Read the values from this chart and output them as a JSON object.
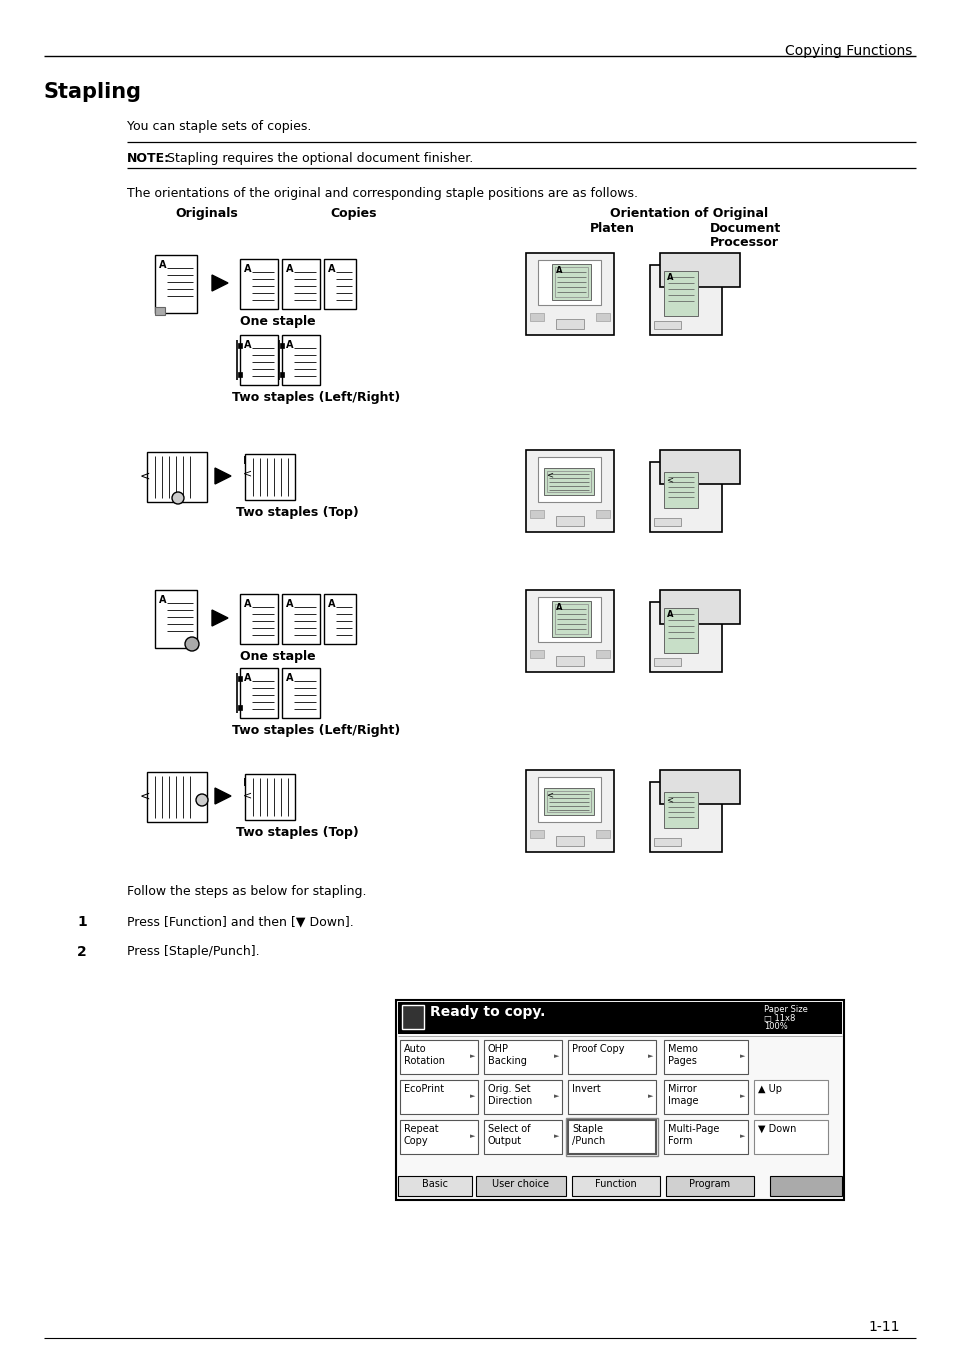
{
  "page_header_text": "Copying Functions",
  "title": "Stapling",
  "body_text_1": "You can staple sets of copies.",
  "note_bold": "NOTE:",
  "note_rest": " Stapling requires the optional document finisher.",
  "body_text_2": "The orientations of the original and corresponding staple positions are as follows.",
  "page_number": "1-11",
  "bg_color": "#ffffff",
  "green_fill": "#c8dfc8",
  "steps_header": "Follow the steps as below for stapling.",
  "step1": "Press [Function] and then [▼ Down].",
  "step2": "Press [Staple/Punch]."
}
